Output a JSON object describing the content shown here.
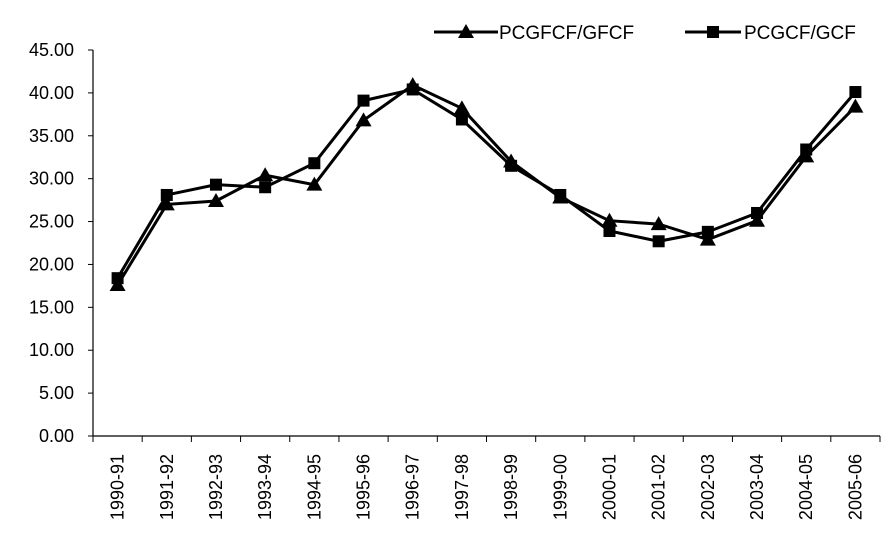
{
  "chart_data": {
    "type": "line",
    "title": "",
    "xlabel": "",
    "ylabel": "",
    "categories": [
      "1990-91",
      "1991-92",
      "1992-93",
      "1993-94",
      "1994-95",
      "1995-96",
      "1996-97",
      "1997-98",
      "1998-99",
      "1999-00",
      "2000-01",
      "2001-02",
      "2002-03",
      "2003-04",
      "2004-05",
      "2005-06"
    ],
    "ylim": [
      0,
      45
    ],
    "yticks": [
      "0.00",
      "5.00",
      "10.00",
      "15.00",
      "20.00",
      "25.00",
      "30.00",
      "35.00",
      "40.00",
      "45.00"
    ],
    "series": [
      {
        "name": "PCGFCF/GFCF",
        "marker": "triangle",
        "color": "#000000",
        "values": [
          17.6,
          27.0,
          27.4,
          30.4,
          29.3,
          36.8,
          40.9,
          38.2,
          32.0,
          27.8,
          25.1,
          24.7,
          22.9,
          25.1,
          32.6,
          38.4
        ]
      },
      {
        "name": "PCGCF/GCF",
        "marker": "square",
        "color": "#000000",
        "values": [
          18.4,
          28.1,
          29.3,
          29.0,
          31.8,
          39.1,
          40.4,
          36.9,
          31.5,
          28.1,
          23.9,
          22.7,
          23.8,
          26.0,
          33.4,
          40.1
        ]
      }
    ],
    "grid": false,
    "legend": "top-right"
  }
}
